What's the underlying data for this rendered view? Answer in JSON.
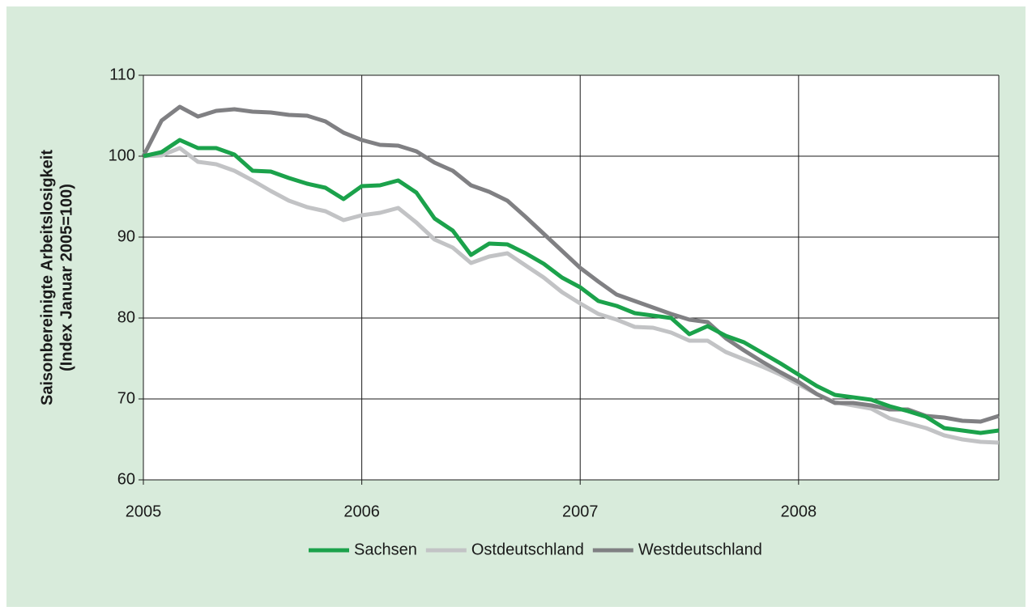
{
  "chart_data": {
    "type": "line",
    "ylabel": [
      "Saisonbereinigte Arbeitslosigkeit",
      "(Index Januar 2005=100)"
    ],
    "categories": [
      "2005",
      null,
      null,
      null,
      null,
      null,
      null,
      null,
      null,
      null,
      null,
      null,
      "2006",
      null,
      null,
      null,
      null,
      null,
      null,
      null,
      null,
      null,
      null,
      null,
      "2007",
      null,
      null,
      null,
      null,
      null,
      null,
      null,
      null,
      null,
      null,
      null,
      "2008",
      null,
      null,
      null,
      null,
      null,
      null,
      null,
      null,
      null,
      null,
      null
    ],
    "ylim": [
      60,
      110
    ],
    "yticks": [
      60,
      70,
      80,
      90,
      100,
      110
    ],
    "grid": true,
    "legend": "bottom",
    "series": [
      {
        "name": "Sachsen",
        "color": "#1ba24b",
        "values": [
          100,
          100.5,
          102,
          101,
          101,
          100.2,
          98.2,
          98.1,
          97.3,
          96.6,
          96.1,
          94.7,
          96.3,
          96.4,
          97,
          95.5,
          92.3,
          90.8,
          87.8,
          89.2,
          89.1,
          88,
          86.7,
          85,
          83.8,
          82.1,
          81.5,
          80.6,
          80.3,
          80,
          78,
          79,
          77.8,
          77,
          75.7,
          74.4,
          73,
          71.6,
          70.5,
          70.2,
          69.9,
          69.1,
          68.5,
          67.8,
          66.4,
          66.1,
          65.8,
          66.1
        ]
      },
      {
        "name": "Ostdeutschland",
        "color": "#c2c3c5",
        "values": [
          100,
          100.1,
          101,
          99.3,
          99,
          98.2,
          97,
          95.7,
          94.5,
          93.7,
          93.2,
          92.1,
          92.7,
          93,
          93.6,
          91.8,
          89.7,
          88.7,
          86.8,
          87.6,
          88,
          86.5,
          85,
          83.2,
          81.8,
          80.5,
          79.8,
          78.9,
          78.8,
          78.2,
          77.2,
          77.2,
          75.8,
          74.9,
          74,
          73,
          71.8,
          70.6,
          69.6,
          69.2,
          68.8,
          67.6,
          67,
          66.4,
          65.5,
          65,
          64.7,
          64.6
        ]
      },
      {
        "name": "Westdeutschland",
        "color": "#808083",
        "values": [
          100,
          104.4,
          106.1,
          104.9,
          105.6,
          105.8,
          105.5,
          105.4,
          105.1,
          105,
          104.3,
          102.9,
          102,
          101.4,
          101.3,
          100.6,
          99.2,
          98.2,
          96.4,
          95.6,
          94.5,
          92.5,
          90.4,
          88.3,
          86.2,
          84.5,
          82.9,
          82.1,
          81.3,
          80.5,
          79.8,
          79.5,
          77.5,
          76,
          74.6,
          73.3,
          72.1,
          70.6,
          69.5,
          69.5,
          69.2,
          68.7,
          68.7,
          67.9,
          67.7,
          67.3,
          67.2,
          67.9
        ]
      }
    ]
  }
}
